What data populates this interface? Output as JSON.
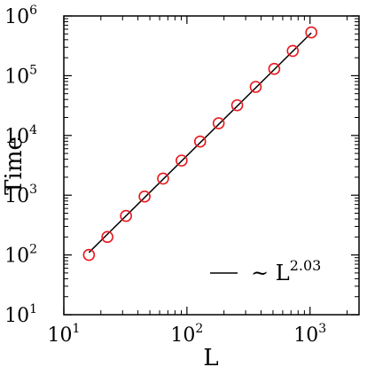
{
  "chart_data": {
    "type": "scatter",
    "xlabel": "L",
    "ylabel": "Time",
    "xscale": "log",
    "yscale": "log",
    "xlim": [
      10,
      2500
    ],
    "ylim": [
      10,
      1000000
    ],
    "grid": false,
    "legend_placement": "bottom-right",
    "x_ticks": [
      {
        "value": 10,
        "mantissa": "10",
        "exponent": "1"
      },
      {
        "value": 100,
        "mantissa": "10",
        "exponent": "2"
      },
      {
        "value": 1000,
        "mantissa": "10",
        "exponent": "3"
      }
    ],
    "y_ticks": [
      {
        "value": 10,
        "mantissa": "10",
        "exponent": "1"
      },
      {
        "value": 100,
        "mantissa": "10",
        "exponent": "2"
      },
      {
        "value": 1000,
        "mantissa": "10",
        "exponent": "3"
      },
      {
        "value": 10000,
        "mantissa": "10",
        "exponent": "4"
      },
      {
        "value": 100000,
        "mantissa": "10",
        "exponent": "5"
      },
      {
        "value": 1000000,
        "mantissa": "10",
        "exponent": "6"
      }
    ],
    "series": [
      {
        "marker": "open-circle",
        "color": "#e8191d",
        "x": [
          16,
          22.6,
          32,
          45.3,
          64,
          90.5,
          128,
          181,
          256,
          362,
          512,
          724,
          1024
        ],
        "y": [
          100,
          200,
          450,
          950,
          1900,
          3800,
          7900,
          16000,
          32000,
          65000,
          130000,
          260000,
          530000
        ]
      },
      {
        "name_prefix": "~ L",
        "name_exponent": "2.03",
        "line_style": "solid",
        "color": "#000000",
        "x": [
          16,
          1024
        ],
        "y": [
          110,
          520000
        ]
      }
    ]
  }
}
